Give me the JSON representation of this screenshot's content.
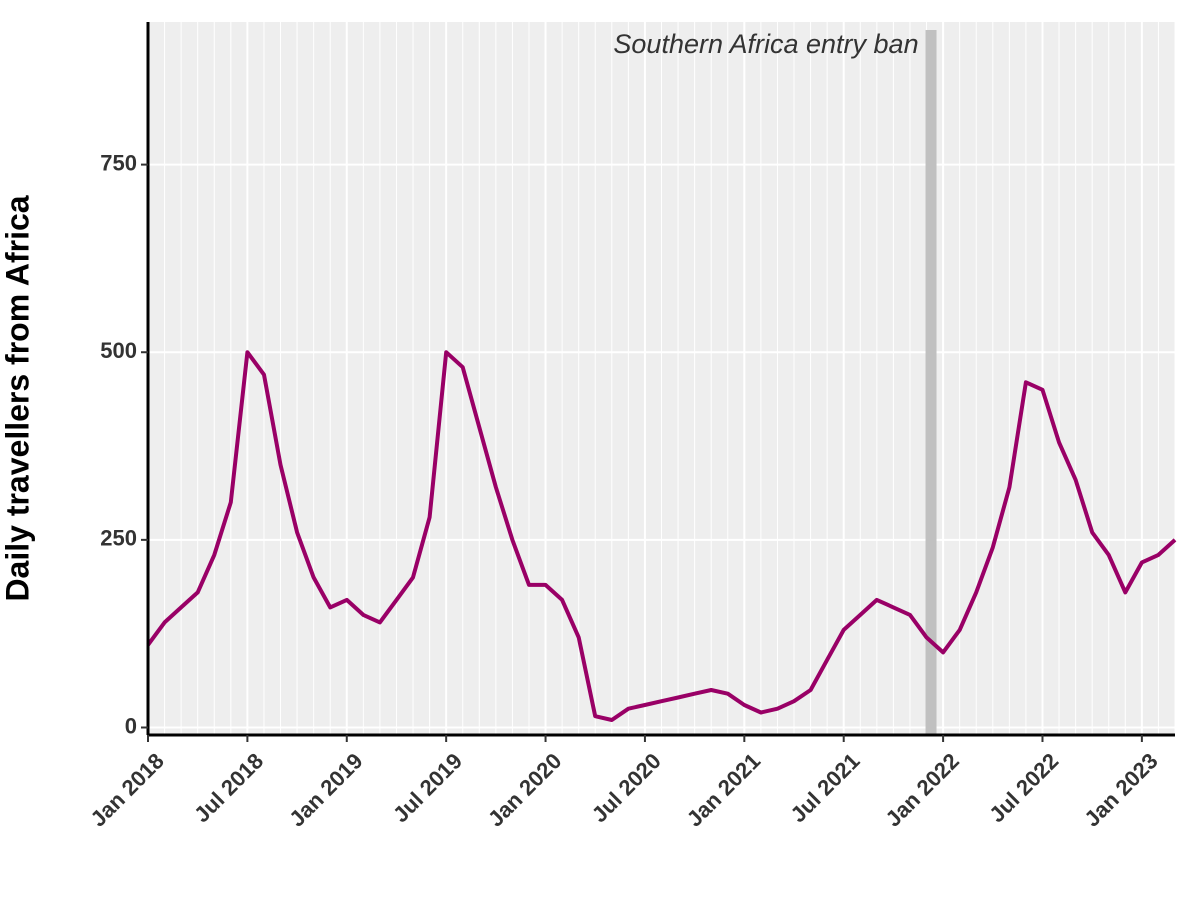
{
  "chart_data": {
    "type": "line",
    "y_label": "Daily travellers from Africa",
    "annotation": {
      "text": "Southern Africa entry ban",
      "x": "2021-12",
      "color": "#c0c0c0"
    },
    "x": [
      "2018-01",
      "2018-02",
      "2018-03",
      "2018-04",
      "2018-05",
      "2018-06",
      "2018-07",
      "2018-08",
      "2018-09",
      "2018-10",
      "2018-11",
      "2018-12",
      "2019-01",
      "2019-02",
      "2019-03",
      "2019-04",
      "2019-05",
      "2019-06",
      "2019-07",
      "2019-08",
      "2019-09",
      "2019-10",
      "2019-11",
      "2019-12",
      "2020-01",
      "2020-02",
      "2020-03",
      "2020-04",
      "2020-05",
      "2020-06",
      "2020-07",
      "2020-08",
      "2020-09",
      "2020-10",
      "2020-11",
      "2020-12",
      "2021-01",
      "2021-02",
      "2021-03",
      "2021-04",
      "2021-05",
      "2021-06",
      "2021-07",
      "2021-08",
      "2021-09",
      "2021-10",
      "2021-11",
      "2021-12",
      "2022-01",
      "2022-02",
      "2022-03",
      "2022-04",
      "2022-05",
      "2022-06",
      "2022-07",
      "2022-08",
      "2022-09",
      "2022-10",
      "2022-11",
      "2022-12",
      "2023-01",
      "2023-02",
      "2023-03"
    ],
    "series": [
      {
        "name": "Daily travellers",
        "color": "#990066",
        "values": [
          110,
          140,
          160,
          180,
          230,
          300,
          500,
          470,
          350,
          260,
          200,
          160,
          170,
          150,
          140,
          170,
          200,
          280,
          500,
          480,
          400,
          320,
          250,
          190,
          190,
          170,
          120,
          15,
          10,
          25,
          30,
          35,
          40,
          45,
          50,
          45,
          30,
          20,
          25,
          35,
          50,
          90,
          130,
          150,
          170,
          160,
          150,
          120,
          100,
          130,
          180,
          240,
          320,
          460,
          450,
          380,
          330,
          260,
          230,
          180,
          220,
          230,
          250
        ]
      }
    ],
    "xlim": [
      "2018-01",
      "2023-03"
    ],
    "xticks": [
      {
        "value": "2018-01",
        "label": "Jan 2018"
      },
      {
        "value": "2018-07",
        "label": "Jul 2018"
      },
      {
        "value": "2019-01",
        "label": "Jan 2019"
      },
      {
        "value": "2019-07",
        "label": "Jul 2019"
      },
      {
        "value": "2020-01",
        "label": "Jan 2020"
      },
      {
        "value": "2020-07",
        "label": "Jul 2020"
      },
      {
        "value": "2021-01",
        "label": "Jan 2021"
      },
      {
        "value": "2021-07",
        "label": "Jul 2021"
      },
      {
        "value": "2022-01",
        "label": "Jan 2022"
      },
      {
        "value": "2022-07",
        "label": "Jul 2022"
      },
      {
        "value": "2023-01",
        "label": "Jan 2023"
      }
    ],
    "ylim": [
      -10,
      940
    ],
    "yticks": [
      0,
      250,
      500,
      750
    ],
    "grid": true
  }
}
